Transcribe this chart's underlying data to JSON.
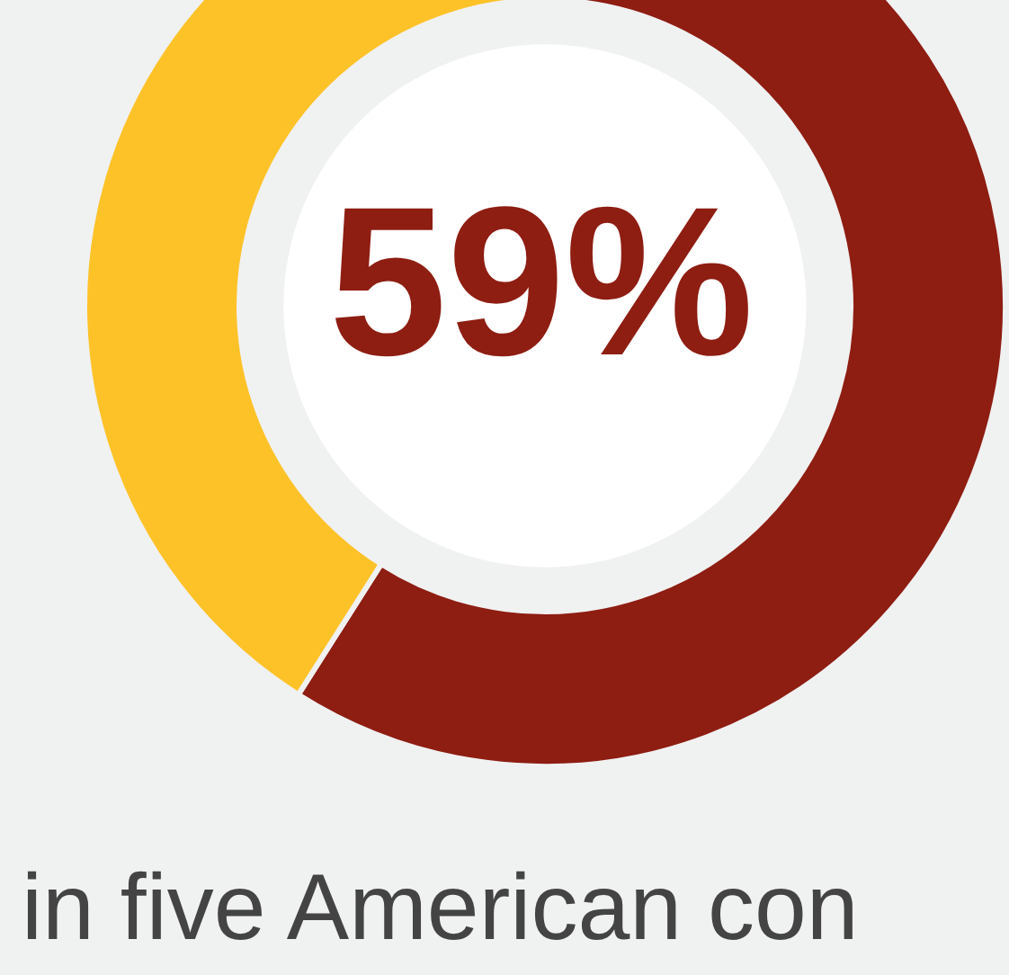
{
  "chart_data": {
    "type": "donut",
    "categories": [
      null,
      null
    ],
    "values": [
      59,
      41
    ],
    "colors": [
      "#8e1d12",
      "#fdc228"
    ],
    "value_labels": [
      "59%",
      null
    ],
    "annotations": [
      "in five American con"
    ]
  }
}
